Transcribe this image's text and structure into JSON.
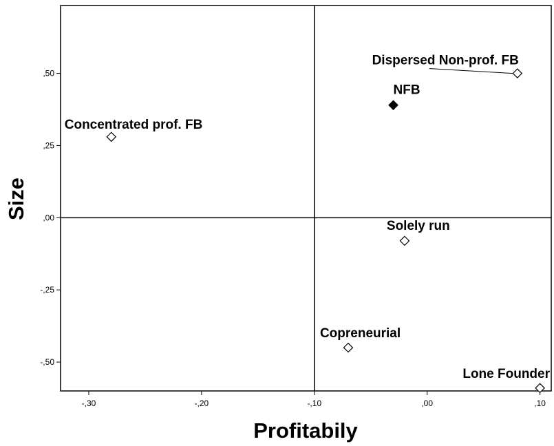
{
  "chart_data": {
    "type": "scatter",
    "xlabel": "Profitabily",
    "ylabel": "Size",
    "xlim": [
      -0.325,
      0.11
    ],
    "ylim": [
      -0.6,
      0.735
    ],
    "x_ticks": [
      {
        "value": -0.3,
        "label": "-,30"
      },
      {
        "value": -0.2,
        "label": "-,20"
      },
      {
        "value": -0.1,
        "label": "-,10"
      },
      {
        "value": 0.0,
        "label": ",00"
      },
      {
        "value": 0.1,
        "label": ",10"
      }
    ],
    "y_ticks": [
      {
        "value": 0.5,
        "label": ",50"
      },
      {
        "value": 0.25,
        "label": ",25"
      },
      {
        "value": 0.0,
        "label": ",00"
      },
      {
        "value": -0.25,
        "label": "-,25"
      },
      {
        "value": -0.5,
        "label": "-,50"
      }
    ],
    "reference_lines": {
      "x": -0.1,
      "y": 0.0
    },
    "grid": false,
    "points": [
      {
        "label": "Dispersed Non-prof. FB",
        "x": 0.08,
        "y": 0.5,
        "marker": "diamond-open"
      },
      {
        "label": "NFB",
        "x": -0.03,
        "y": 0.39,
        "marker": "diamond-filled"
      },
      {
        "label": "Concentrated prof. FB",
        "x": -0.28,
        "y": 0.28,
        "marker": "diamond-open"
      },
      {
        "label": "Solely run",
        "x": -0.02,
        "y": -0.08,
        "marker": "diamond-open"
      },
      {
        "label": "Copreneurial",
        "x": -0.07,
        "y": -0.45,
        "marker": "diamond-open"
      },
      {
        "label": "Lone Founder",
        "x": 0.1,
        "y": -0.59,
        "marker": "diamond-open"
      }
    ]
  }
}
